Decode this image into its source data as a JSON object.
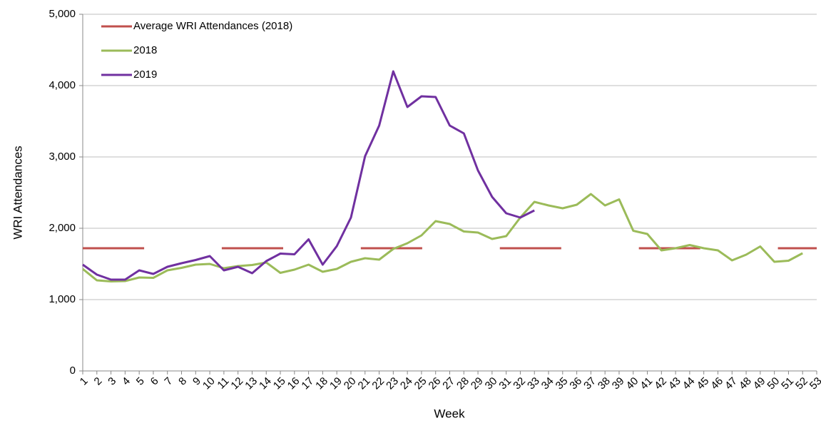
{
  "chart_data": {
    "type": "line",
    "x_label": "Week",
    "y_label": "WRI Attendances",
    "categories": [
      "1",
      "2",
      "3",
      "4",
      "5",
      "6",
      "7",
      "8",
      "9",
      "10",
      "11",
      "12",
      "13",
      "14",
      "15",
      "16",
      "17",
      "18",
      "19",
      "20",
      "21",
      "22",
      "23",
      "24",
      "25",
      "26",
      "27",
      "28",
      "29",
      "30",
      "31",
      "32",
      "33",
      "34",
      "35",
      "36",
      "37",
      "38",
      "39",
      "40",
      "41",
      "42",
      "43",
      "44",
      "45",
      "46",
      "47",
      "48",
      "49",
      "50",
      "51",
      "52",
      "53"
    ],
    "series": [
      {
        "name": "Average WRI Attendances (2018)",
        "color": "#c0504d",
        "line_style": "dashed",
        "values": [
          1720,
          1720,
          1720,
          1720,
          1720,
          1720,
          1720,
          1720,
          1720,
          1720,
          1720,
          1720,
          1720,
          1720,
          1720,
          1720,
          1720,
          1720,
          1720,
          1720,
          1720,
          1720,
          1720,
          1720,
          1720,
          1720,
          1720,
          1720,
          1720,
          1720,
          1720,
          1720,
          1720,
          1720,
          1720,
          1720,
          1720,
          1720,
          1720,
          1720,
          1720,
          1720,
          1720,
          1720,
          1720,
          1720,
          1720,
          1720,
          1720,
          1720,
          1720,
          1720,
          1720
        ]
      },
      {
        "name": "2018",
        "color": "#9bbb59",
        "line_style": "solid",
        "values": [
          1430,
          1270,
          1255,
          1260,
          1310,
          1305,
          1410,
          1445,
          1490,
          1500,
          1440,
          1470,
          1485,
          1520,
          1375,
          1420,
          1490,
          1390,
          1430,
          1530,
          1580,
          1560,
          1710,
          1790,
          1900,
          2100,
          2060,
          1955,
          1940,
          1850,
          1890,
          2150,
          2370,
          2320,
          2280,
          2330,
          2480,
          2320,
          2405,
          1965,
          1920,
          1690,
          1720,
          1765,
          1720,
          1690,
          1550,
          1630,
          1745,
          1530,
          1545,
          1650,
          null
        ]
      },
      {
        "name": "2019",
        "color": "#7030a0",
        "line_style": "solid",
        "values": [
          1490,
          1350,
          1280,
          1280,
          1410,
          1360,
          1460,
          1510,
          1555,
          1610,
          1410,
          1460,
          1370,
          1540,
          1645,
          1635,
          1845,
          1490,
          1750,
          2150,
          3010,
          3440,
          4200,
          3700,
          3850,
          3840,
          3440,
          3330,
          2810,
          2440,
          2210,
          2150,
          2250,
          null,
          null,
          null,
          null,
          null,
          null,
          null,
          null,
          null,
          null,
          null,
          null,
          null,
          null,
          null,
          null,
          null,
          null,
          null,
          null
        ]
      }
    ],
    "ylim": [
      0,
      5000
    ],
    "yticks": [
      0,
      {
        "value": 1000,
        "label": "1,000"
      },
      {
        "value": 2000,
        "label": "2,000"
      },
      {
        "value": 3000,
        "label": "3,000"
      },
      {
        "value": 4000,
        "label": "4,000"
      },
      {
        "value": 5000,
        "label": "5,000"
      }
    ],
    "grid": true,
    "legend": "upper left"
  }
}
